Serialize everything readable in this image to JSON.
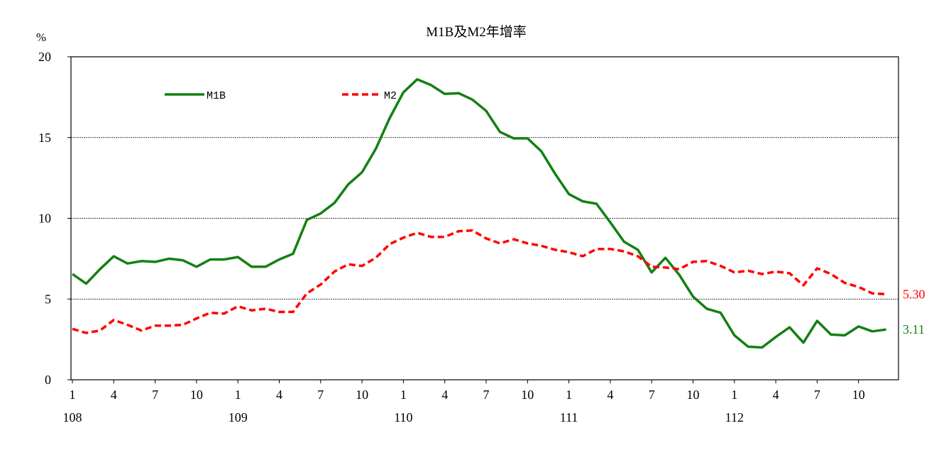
{
  "chart_data": {
    "type": "line",
    "title": "M1B及M2年增率",
    "ylabel": "%",
    "ylim": [
      0,
      20
    ],
    "yticks": [
      "0",
      "5",
      "10",
      "15",
      "20"
    ],
    "grid": true,
    "legend_placement": "top-left",
    "month_ticks": [
      "1",
      "4",
      "7",
      "10",
      "1",
      "4",
      "7",
      "10",
      "1",
      "4",
      "7",
      "10",
      "1",
      "4",
      "7",
      "10",
      "1",
      "4",
      "7",
      "10"
    ],
    "year_labels": [
      "108",
      "109",
      "110",
      "111",
      "112"
    ],
    "colors": {
      "M1B": "#138013",
      "M2": "#ff0000"
    },
    "series": [
      {
        "name": "M1B",
        "style": "solid",
        "end_label": "3.11",
        "values": [
          6.55,
          5.95,
          6.85,
          7.65,
          7.2,
          7.35,
          7.3,
          7.5,
          7.4,
          7.0,
          7.45,
          7.45,
          7.6,
          7.0,
          7.0,
          7.45,
          7.8,
          9.9,
          10.3,
          10.95,
          12.1,
          12.85,
          14.3,
          16.2,
          17.8,
          18.6,
          18.25,
          17.7,
          17.75,
          17.35,
          16.65,
          15.35,
          14.95,
          14.95,
          14.15,
          12.75,
          11.5,
          11.05,
          10.9,
          9.75,
          8.55,
          8.05,
          6.65,
          7.55,
          6.5,
          5.15,
          4.4,
          4.15,
          2.75,
          2.05,
          2.0,
          2.65,
          3.25,
          2.3,
          3.65,
          2.8,
          2.75,
          3.3,
          3.0,
          3.11
        ]
      },
      {
        "name": "M2",
        "style": "dashed",
        "end_label": "5.30",
        "values": [
          3.15,
          2.9,
          3.05,
          3.7,
          3.4,
          3.05,
          3.35,
          3.35,
          3.4,
          3.8,
          4.15,
          4.1,
          4.55,
          4.3,
          4.4,
          4.2,
          4.2,
          5.35,
          5.9,
          6.7,
          7.15,
          7.05,
          7.55,
          8.4,
          8.8,
          9.1,
          8.85,
          8.85,
          9.2,
          9.25,
          8.75,
          8.45,
          8.7,
          8.45,
          8.3,
          8.05,
          7.9,
          7.65,
          8.1,
          8.1,
          7.95,
          7.65,
          7.0,
          6.95,
          6.85,
          7.3,
          7.35,
          7.05,
          6.65,
          6.75,
          6.55,
          6.7,
          6.6,
          5.85,
          6.9,
          6.55,
          6.0,
          5.75,
          5.35,
          5.3
        ]
      }
    ]
  }
}
